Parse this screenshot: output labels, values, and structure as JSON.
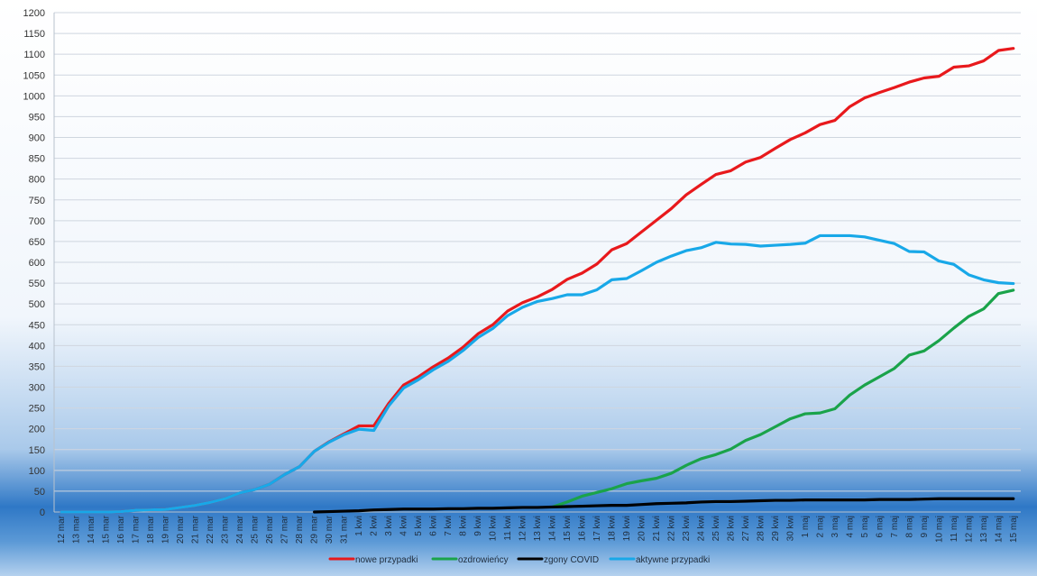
{
  "chart_data": {
    "type": "line",
    "title": "",
    "xlabel": "",
    "ylabel": "",
    "ylim": [
      0,
      1200
    ],
    "yticks": [
      0,
      50,
      100,
      150,
      200,
      250,
      300,
      350,
      400,
      450,
      500,
      550,
      600,
      650,
      700,
      750,
      800,
      850,
      900,
      950,
      1000,
      1050,
      1100,
      1150,
      1200
    ],
    "grid": true,
    "legend_position": "bottom",
    "x": [
      "12 mar",
      "13 mar",
      "14 mar",
      "15 mar",
      "16 mar",
      "17 mar",
      "18 mar",
      "19 mar",
      "20 mar",
      "21 mar",
      "22 mar",
      "23 mar",
      "24 mar",
      "25 mar",
      "26 mar",
      "27 mar",
      "28 mar",
      "29 mar",
      "30 mar",
      "31 mar",
      "1 kwi",
      "2 kwi",
      "3 kwi",
      "4 kwi",
      "5 kwi",
      "6 kwi",
      "7 kwi",
      "8 kwi",
      "9 kwi",
      "10 kwi",
      "11 kwi",
      "12 kwi",
      "13 kwi",
      "14 kwi",
      "15 kwi",
      "16 kwi",
      "17 kwi",
      "18 kwi",
      "19 kwi",
      "20 kwi",
      "21 kwi",
      "22 kwi",
      "23 kwi",
      "24 kwi",
      "25 kwi",
      "26 kwi",
      "27 kwi",
      "28 kwi",
      "29 kwi",
      "30 kwi",
      "1 maj",
      "2 maj",
      "3 maj",
      "4 maj",
      "5 maj",
      "6 maj",
      "7 maj",
      "8 maj",
      "9 maj",
      "10 maj",
      "11 maj",
      "12 maj",
      "13 maj",
      "14 maj",
      "15 maj"
    ],
    "series": [
      {
        "name": "nowe przypadki",
        "color": "#e8191c",
        "values": [
          0,
          0,
          0,
          0,
          1,
          4,
          5,
          6,
          11,
          16,
          23,
          32,
          46,
          54,
          67,
          90,
          109,
          146,
          169,
          188,
          207,
          207,
          261,
          305,
          325,
          349,
          370,
          396,
          428,
          450,
          483,
          503,
          517,
          535,
          559,
          574,
          596,
          630,
          645,
          673,
          701,
          729,
          762,
          787,
          811,
          820,
          841,
          852,
          874,
          895,
          911,
          931,
          941,
          974,
          995,
          1008,
          1020,
          1033,
          1043,
          1047,
          1069,
          1072,
          1084,
          1109,
          1114
        ]
      },
      {
        "name": "ozdrowieńcy",
        "color": "#1aa34a",
        "values": [
          null,
          null,
          null,
          null,
          null,
          null,
          null,
          null,
          null,
          null,
          null,
          null,
          null,
          null,
          null,
          null,
          null,
          null,
          null,
          null,
          null,
          null,
          null,
          null,
          null,
          null,
          null,
          null,
          null,
          null,
          null,
          null,
          null,
          12,
          24,
          38,
          47,
          56,
          68,
          75,
          81,
          93,
          112,
          128,
          138,
          151,
          172,
          186,
          205,
          224,
          236,
          238,
          248,
          281,
          305,
          325,
          345,
          377,
          387,
          412,
          442,
          470,
          488,
          525,
          533
        ]
      },
      {
        "name": "zgony COVID",
        "color": "#000000",
        "values": [
          null,
          null,
          null,
          null,
          null,
          null,
          null,
          null,
          null,
          null,
          null,
          null,
          null,
          null,
          null,
          null,
          null,
          0,
          1,
          2,
          3,
          5,
          6,
          7,
          7,
          7,
          8,
          8,
          9,
          9,
          10,
          11,
          11,
          12,
          13,
          14,
          15,
          16,
          16,
          18,
          20,
          21,
          22,
          24,
          25,
          25,
          26,
          27,
          28,
          28,
          29,
          29,
          29,
          29,
          29,
          30,
          30,
          30,
          31,
          32,
          32,
          32,
          32,
          32,
          32
        ]
      },
      {
        "name": "aktywne przypadki",
        "color": "#18a8e8",
        "values": [
          0,
          0,
          0,
          0,
          1,
          4,
          5,
          6,
          11,
          16,
          23,
          32,
          46,
          54,
          67,
          90,
          109,
          146,
          168,
          186,
          199,
          196,
          255,
          298,
          318,
          342,
          362,
          388,
          419,
          441,
          472,
          492,
          506,
          513,
          522,
          522,
          534,
          558,
          561,
          580,
          600,
          615,
          628,
          635,
          648,
          644,
          643,
          639,
          641,
          643,
          646,
          664,
          664,
          664,
          661,
          653,
          645,
          626,
          625,
          603,
          595,
          570,
          558,
          551,
          549
        ]
      }
    ]
  }
}
